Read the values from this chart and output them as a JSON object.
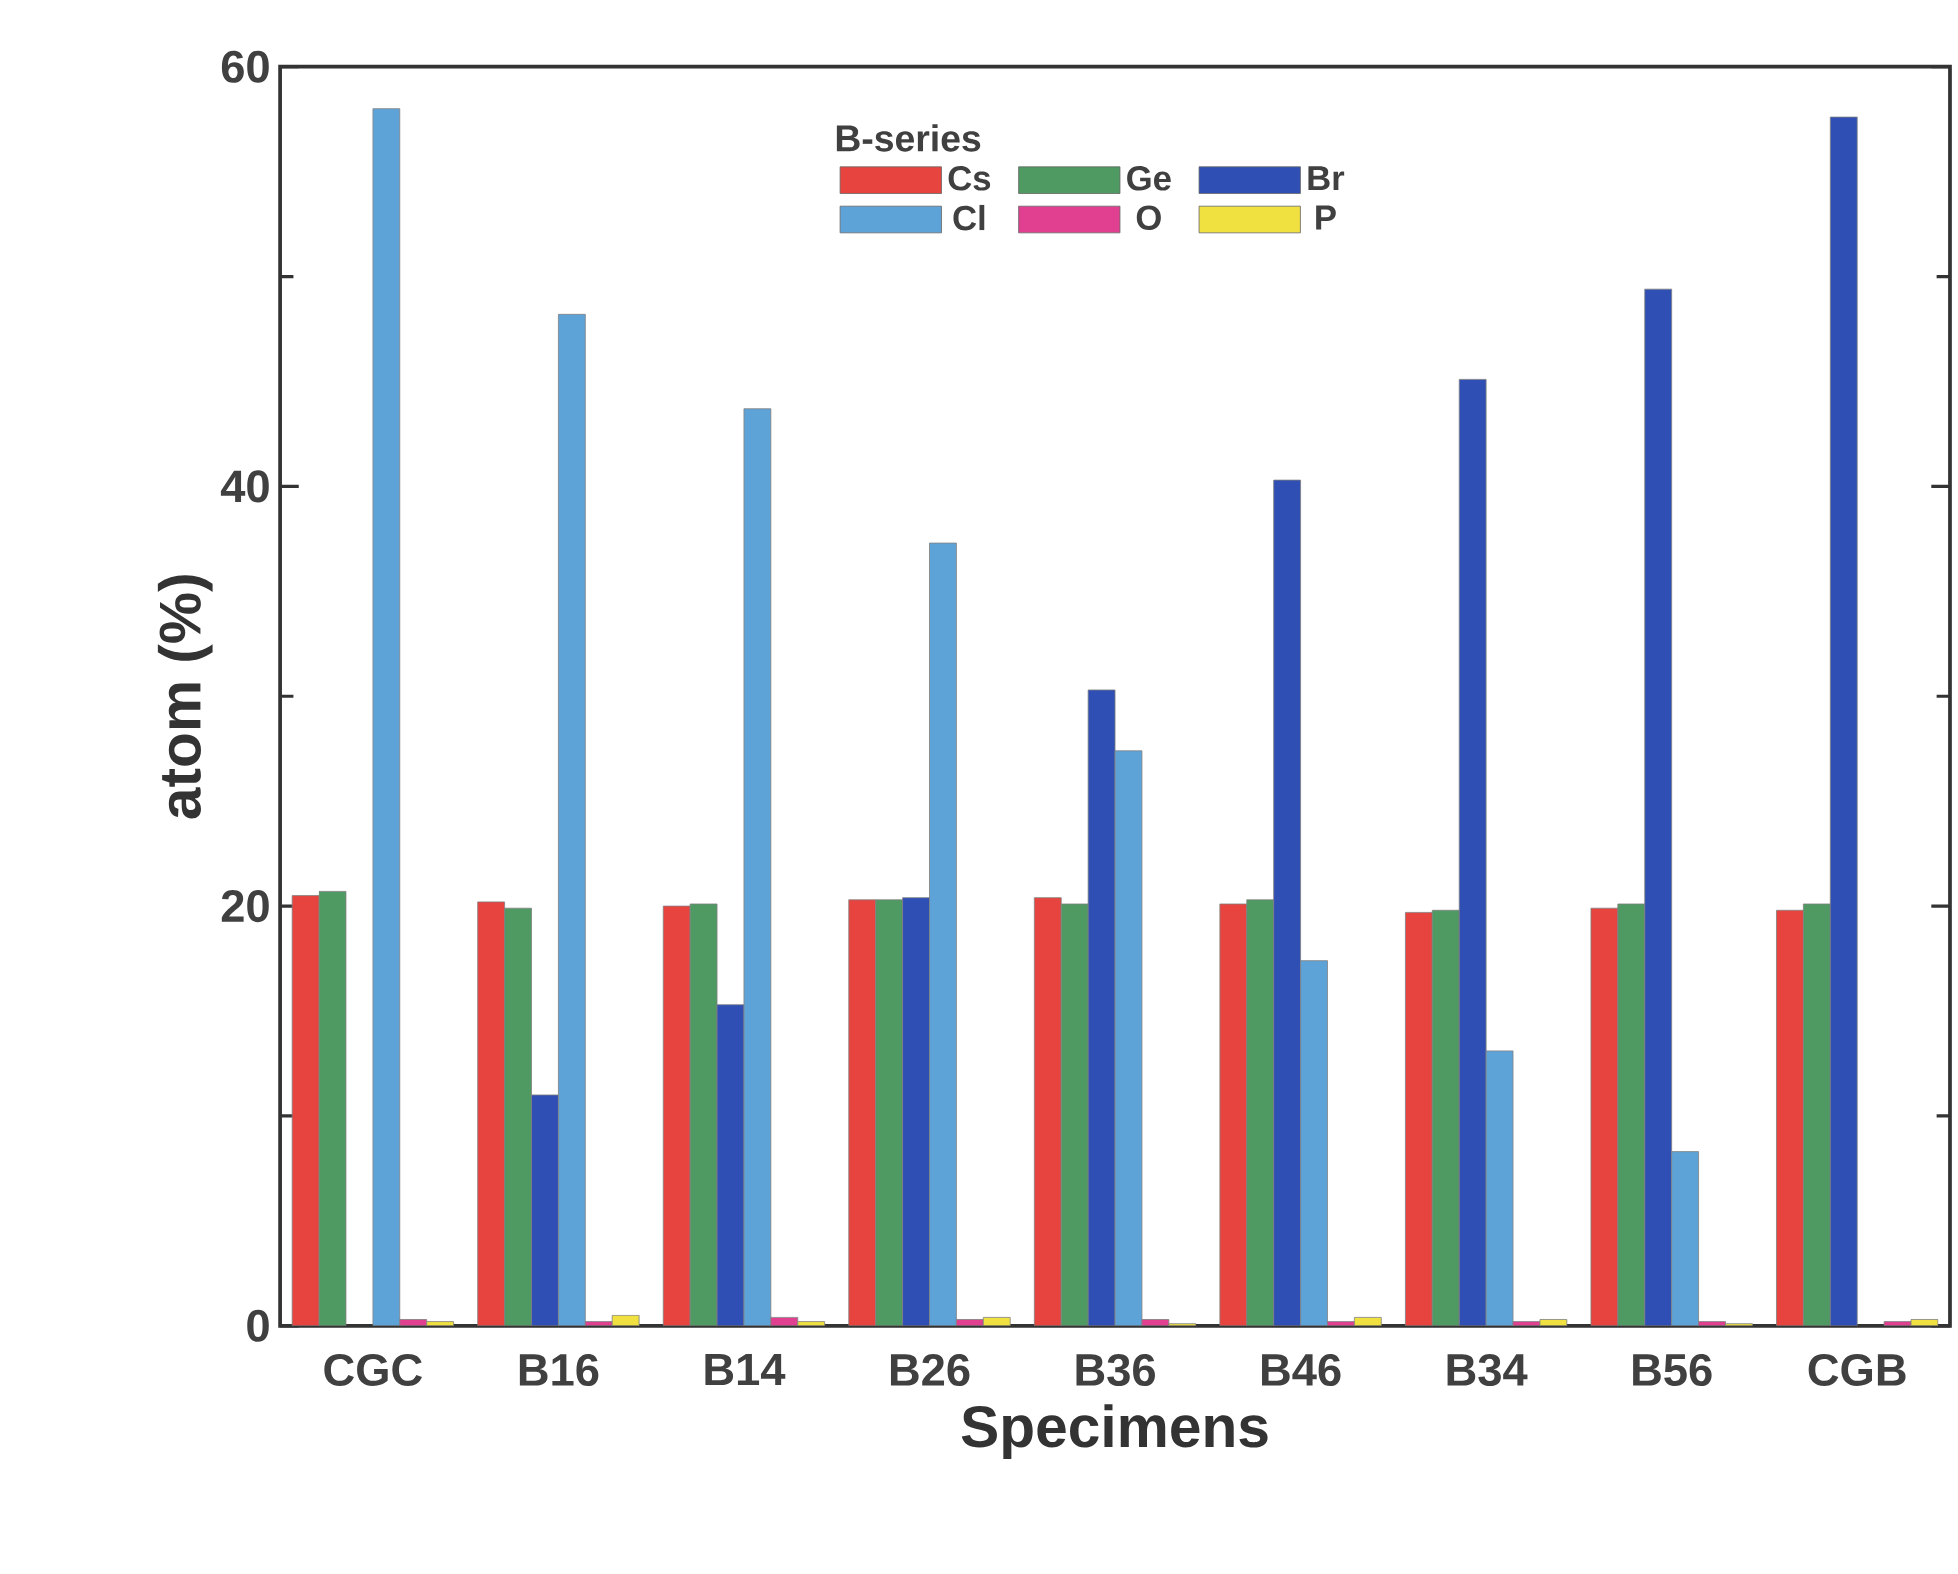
{
  "chart_data": {
    "type": "bar",
    "xlabel": "Specimens",
    "ylabel": "atom (%)",
    "legend_title": "B-series",
    "legend": "top",
    "grid": false,
    "categories": [
      "CGC",
      "B16",
      "B14",
      "B26",
      "B36",
      "B46",
      "B34",
      "B56",
      "CGB"
    ],
    "ylim": [
      0,
      60
    ],
    "yticks": [
      0,
      20,
      40,
      60
    ],
    "series": [
      {
        "name": "Cs",
        "color": "#e8443f",
        "values": [
          20.5,
          20.2,
          20.0,
          20.3,
          20.4,
          20.1,
          19.7,
          19.9,
          19.8
        ]
      },
      {
        "name": "Ge",
        "color": "#4e9a62",
        "values": [
          20.7,
          19.9,
          20.1,
          20.3,
          20.1,
          20.3,
          19.8,
          20.1,
          20.1
        ]
      },
      {
        "name": "Br",
        "color": "#2f4fb5",
        "values": [
          null,
          11.0,
          15.3,
          20.4,
          30.3,
          40.3,
          45.1,
          49.4,
          57.6
        ]
      },
      {
        "name": "Cl",
        "color": "#5ea3d8",
        "values": [
          58.0,
          48.2,
          43.7,
          37.3,
          27.4,
          17.4,
          13.1,
          8.3,
          null
        ]
      },
      {
        "name": "O",
        "color": "#e0408f",
        "values": [
          0.3,
          0.2,
          0.4,
          0.3,
          0.3,
          0.2,
          0.2,
          0.2,
          0.2
        ]
      },
      {
        "name": "P",
        "color": "#f0e040",
        "values": [
          0.2,
          0.5,
          0.2,
          0.4,
          0.1,
          0.4,
          0.3,
          0.1,
          0.3
        ]
      }
    ]
  }
}
